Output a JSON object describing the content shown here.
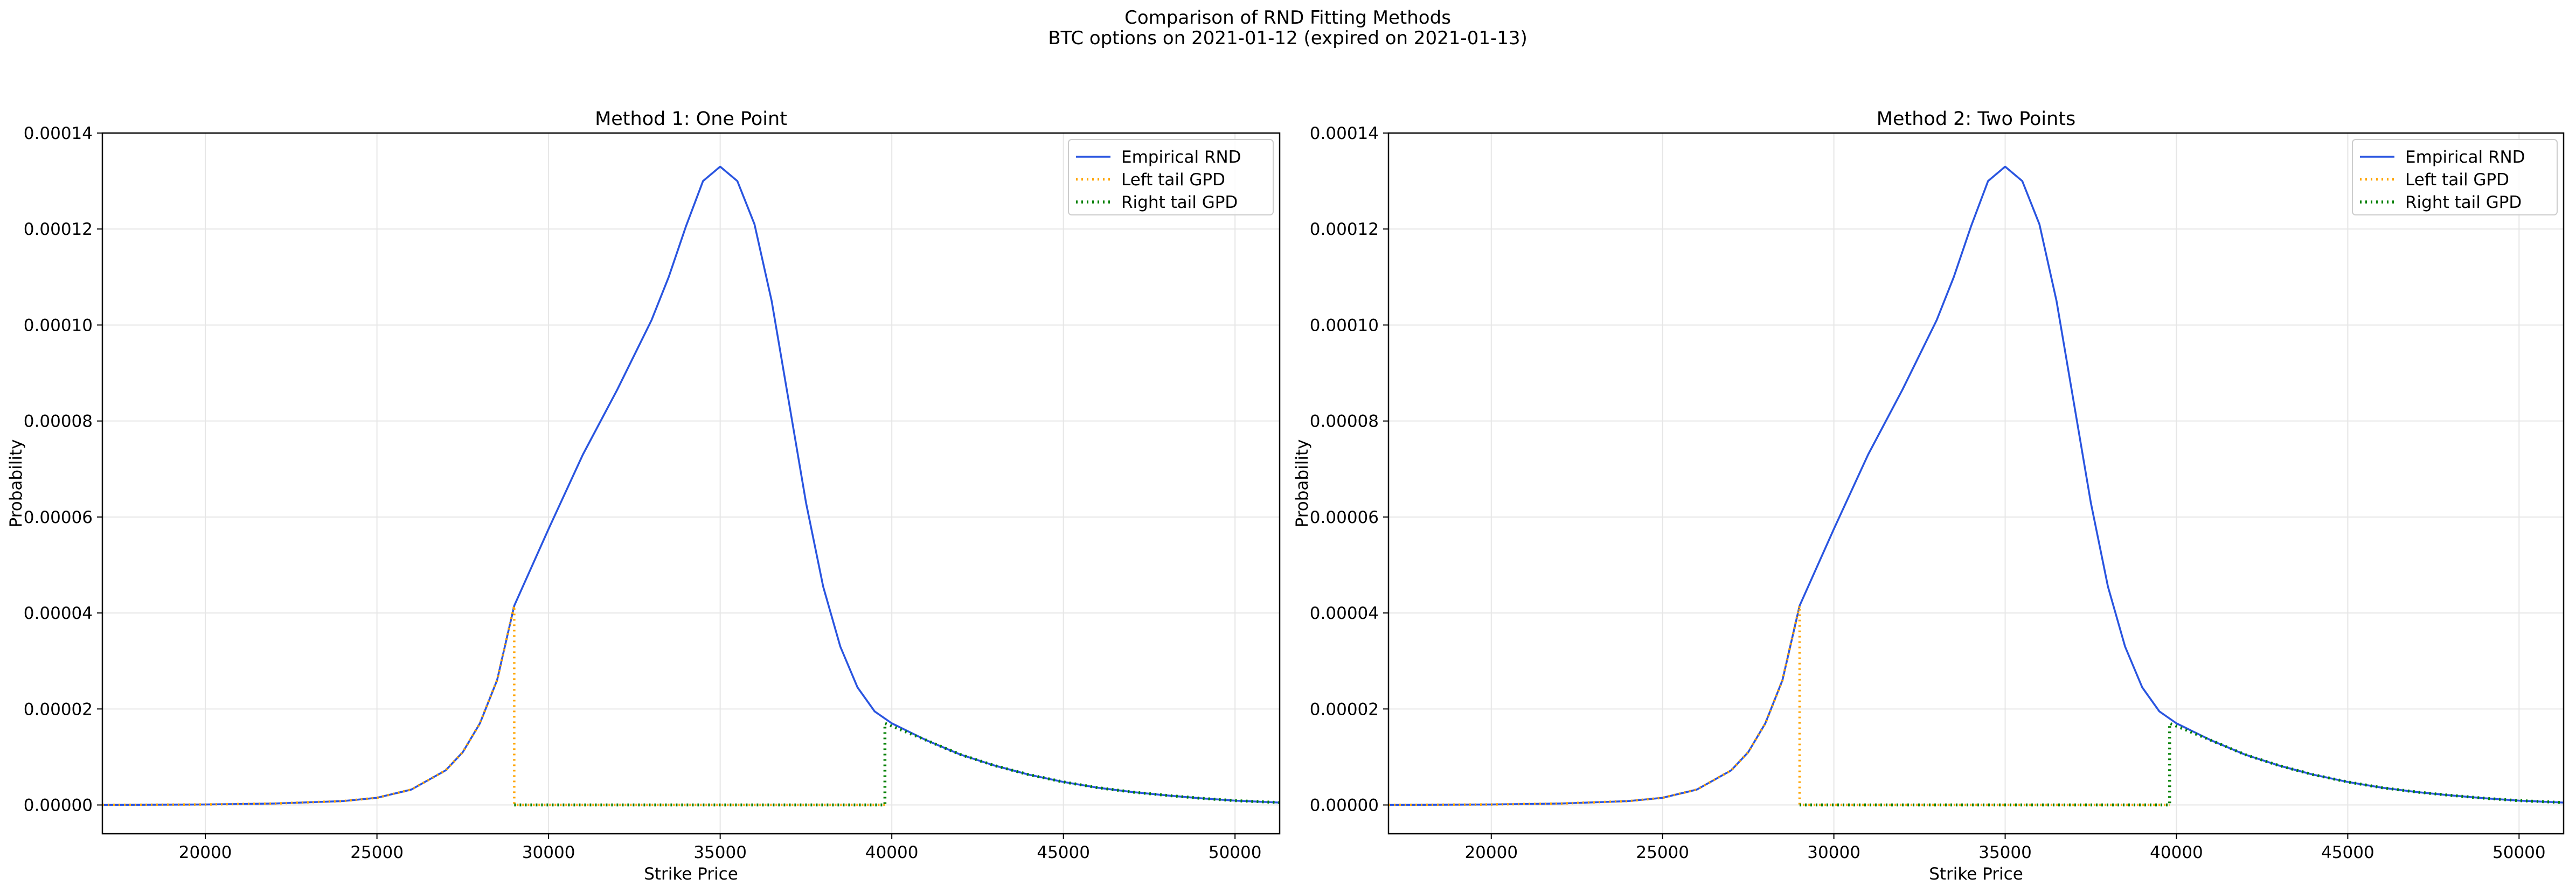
{
  "figure": {
    "suptitle_line1": "Comparison of RND Fitting Methods",
    "suptitle_line2": "BTC options on 2021-01-12 (expired on 2021-01-13)"
  },
  "colors": {
    "empirical": "#2a55e0",
    "left_tail": "#ffa500",
    "right_tail": "#008000",
    "grid": "#e6e6e6",
    "axis": "#000000"
  },
  "chart_data": [
    {
      "type": "line",
      "title": "Method 1: One Point",
      "xlabel": "Strike Price",
      "ylabel": "Probability",
      "xlim": [
        17000,
        51300
      ],
      "ylim": [
        -6e-06,
        0.00014
      ],
      "xticks": [
        20000,
        25000,
        30000,
        35000,
        40000,
        45000,
        50000
      ],
      "xtick_labels": [
        "20000",
        "25000",
        "30000",
        "35000",
        "40000",
        "45000",
        "50000"
      ],
      "yticks": [
        0,
        2e-05,
        4e-05,
        6e-05,
        8e-05,
        0.0001,
        0.00012,
        0.00014
      ],
      "ytick_labels": [
        "0.00000",
        "0.00002",
        "0.00004",
        "0.00006",
        "0.00008",
        "0.00010",
        "0.00012",
        "0.00014"
      ],
      "grid": true,
      "legend_position": "top-right",
      "series": [
        {
          "name": "Empirical RND",
          "style": "solid",
          "x": [
            17000,
            20000,
            22000,
            24000,
            25000,
            26000,
            27000,
            27500,
            28000,
            28500,
            29000,
            30000,
            31000,
            32000,
            33000,
            33500,
            34000,
            34500,
            35000,
            35500,
            36000,
            36500,
            37000,
            37500,
            38000,
            38500,
            39000,
            39500,
            40000,
            41000,
            42000,
            43000,
            44000,
            45000,
            46000,
            47000,
            48000,
            49000,
            50000,
            51300
          ],
          "y": [
            0,
            1e-07,
            3e-07,
            8e-07,
            1.5e-06,
            3.2e-06,
            7.2e-06,
            1.1e-05,
            1.7e-05,
            2.6e-05,
            4.15e-05,
            5.75e-05,
            7.3e-05,
            8.65e-05,
            0.000101,
            0.00011,
            0.0001205,
            0.00013,
            0.000133,
            0.00013,
            0.000121,
            0.000105,
            8.4e-05,
            6.3e-05,
            4.55e-05,
            3.3e-05,
            2.45e-05,
            1.95e-05,
            1.7e-05,
            1.35e-05,
            1.05e-05,
            8.2e-06,
            6.3e-06,
            4.8e-06,
            3.6e-06,
            2.7e-06,
            2e-06,
            1.4e-06,
            9e-07,
            5e-07
          ]
        },
        {
          "name": "Left tail GPD",
          "style": "dotted",
          "x": [
            17000,
            20000,
            22000,
            24000,
            25000,
            26000,
            27000,
            27500,
            28000,
            28500,
            29000,
            29000,
            39800
          ],
          "y": [
            0,
            1e-07,
            3e-07,
            8e-07,
            1.5e-06,
            3.2e-06,
            7.2e-06,
            1.1e-05,
            1.7e-05,
            2.6e-05,
            4.15e-05,
            0,
            0
          ]
        },
        {
          "name": "Right tail GPD",
          "style": "dotted",
          "x": [
            29000,
            39800,
            39800,
            41000,
            42000,
            43000,
            44000,
            45000,
            46000,
            47000,
            48000,
            49000,
            50000,
            51300
          ],
          "y": [
            0,
            0,
            1.7e-05,
            1.35e-05,
            1.05e-05,
            8.2e-06,
            6.3e-06,
            4.8e-06,
            3.6e-06,
            2.7e-06,
            2e-06,
            1.4e-06,
            9e-07,
            5e-07
          ]
        }
      ]
    },
    {
      "type": "line",
      "title": "Method 2: Two Points",
      "xlabel": "Strike Price",
      "ylabel": "Probability",
      "xlim": [
        17000,
        51300
      ],
      "ylim": [
        -6e-06,
        0.00014
      ],
      "xticks": [
        20000,
        25000,
        30000,
        35000,
        40000,
        45000,
        50000
      ],
      "xtick_labels": [
        "20000",
        "25000",
        "30000",
        "35000",
        "40000",
        "45000",
        "50000"
      ],
      "yticks": [
        0,
        2e-05,
        4e-05,
        6e-05,
        8e-05,
        0.0001,
        0.00012,
        0.00014
      ],
      "ytick_labels": [
        "0.00000",
        "0.00002",
        "0.00004",
        "0.00006",
        "0.00008",
        "0.00010",
        "0.00012",
        "0.00014"
      ],
      "grid": true,
      "legend_position": "top-right",
      "series": [
        {
          "name": "Empirical RND",
          "style": "solid",
          "x": [
            17000,
            20000,
            22000,
            24000,
            25000,
            26000,
            27000,
            27500,
            28000,
            28500,
            29000,
            30000,
            31000,
            32000,
            33000,
            33500,
            34000,
            34500,
            35000,
            35500,
            36000,
            36500,
            37000,
            37500,
            38000,
            38500,
            39000,
            39500,
            40000,
            41000,
            42000,
            43000,
            44000,
            45000,
            46000,
            47000,
            48000,
            49000,
            50000,
            51300
          ],
          "y": [
            0,
            1e-07,
            3e-07,
            8e-07,
            1.5e-06,
            3.2e-06,
            7.2e-06,
            1.1e-05,
            1.7e-05,
            2.6e-05,
            4.15e-05,
            5.75e-05,
            7.3e-05,
            8.65e-05,
            0.000101,
            0.00011,
            0.0001205,
            0.00013,
            0.000133,
            0.00013,
            0.000121,
            0.000105,
            8.4e-05,
            6.3e-05,
            4.55e-05,
            3.3e-05,
            2.45e-05,
            1.95e-05,
            1.7e-05,
            1.35e-05,
            1.05e-05,
            8.2e-06,
            6.3e-06,
            4.8e-06,
            3.6e-06,
            2.7e-06,
            2e-06,
            1.4e-06,
            9e-07,
            5e-07
          ]
        },
        {
          "name": "Left tail GPD",
          "style": "dotted",
          "x": [
            17000,
            20000,
            22000,
            24000,
            25000,
            26000,
            27000,
            27500,
            28000,
            28500,
            29000,
            29000,
            39800
          ],
          "y": [
            0,
            1e-07,
            3e-07,
            8e-07,
            1.5e-06,
            3.2e-06,
            7.2e-06,
            1.1e-05,
            1.7e-05,
            2.6e-05,
            4.15e-05,
            0,
            0
          ]
        },
        {
          "name": "Right tail GPD",
          "style": "dotted",
          "x": [
            29000,
            39800,
            39800,
            41000,
            42000,
            43000,
            44000,
            45000,
            46000,
            47000,
            48000,
            49000,
            50000,
            51300
          ],
          "y": [
            0,
            0,
            1.7e-05,
            1.35e-05,
            1.05e-05,
            8.2e-06,
            6.3e-06,
            4.8e-06,
            3.6e-06,
            2.7e-06,
            2e-06,
            1.4e-06,
            9e-07,
            5e-07
          ]
        }
      ]
    }
  ]
}
